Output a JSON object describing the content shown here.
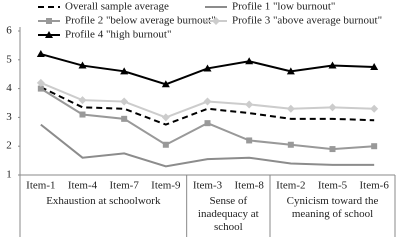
{
  "chart_data": {
    "type": "line",
    "groups": [
      {
        "label": "Exhaustion at schoolwork",
        "categories": [
          "Item-1",
          "Item-4",
          "Item-7",
          "Item-9"
        ]
      },
      {
        "label": "Sense of inadequacy at school",
        "categories": [
          "Item-3",
          "Item-8"
        ]
      },
      {
        "label": "Cynicism toward the meaning of school",
        "categories": [
          "Item-2",
          "Item-5",
          "Item-6"
        ]
      }
    ],
    "ylim": [
      1,
      6
    ],
    "yticks": [
      1,
      2,
      3,
      4,
      5,
      6
    ],
    "series": [
      {
        "name": "Overall sample average",
        "color": "#000000",
        "dash": true,
        "marker": "none",
        "values": [
          4.05,
          3.35,
          3.3,
          2.75,
          3.3,
          3.15,
          2.95,
          2.95,
          2.9
        ]
      },
      {
        "name": "Profile 1 \"low burnout\"",
        "color": "#8c8c8c",
        "dash": false,
        "marker": "none",
        "values": [
          2.75,
          1.6,
          1.75,
          1.3,
          1.55,
          1.6,
          1.4,
          1.35,
          1.35
        ]
      },
      {
        "name": "Profile 2 \"below average burnout\"",
        "color": "#999999",
        "dash": false,
        "marker": "square",
        "values": [
          4.0,
          3.1,
          2.95,
          2.05,
          2.8,
          2.2,
          2.05,
          1.9,
          2.0
        ]
      },
      {
        "name": "Profile 3 \"above average burnout\"",
        "color": "#cccccc",
        "dash": false,
        "marker": "diamond",
        "values": [
          4.2,
          3.6,
          3.55,
          3.0,
          3.55,
          3.45,
          3.3,
          3.35,
          3.3
        ]
      },
      {
        "name": "Profile 4 \"high burnout\"",
        "color": "#000000",
        "dash": false,
        "marker": "triangle",
        "values": [
          5.2,
          4.8,
          4.6,
          4.15,
          4.7,
          4.95,
          4.6,
          4.8,
          4.75
        ]
      }
    ]
  }
}
